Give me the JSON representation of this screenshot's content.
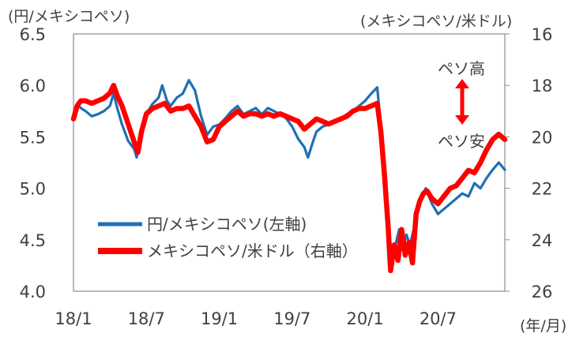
{
  "chart_data": {
    "type": "line",
    "title": "",
    "left_unit": "(円/メキシコペソ)",
    "right_unit": "(メキシコペソ/米ドル)",
    "period_unit": "(年/月)",
    "y_left": {
      "min": 4.0,
      "max": 6.5,
      "ticks": [
        "6.5",
        "6.0",
        "5.5",
        "5.0",
        "4.5",
        "4.0"
      ]
    },
    "y_right": {
      "min": 16,
      "max": 26,
      "inverted": true,
      "ticks": [
        "16",
        "18",
        "20",
        "22",
        "24",
        "26"
      ]
    },
    "x_ticks": [
      "18/1",
      "18/7",
      "19/1",
      "19/7",
      "20/1",
      "20/7"
    ],
    "x_tick_months": [
      0,
      6,
      12,
      18,
      24,
      30
    ],
    "x_range_months": [
      0,
      35.5
    ],
    "annotations": {
      "up": "ペソ高",
      "down": "ペソ安",
      "arrow_color": "#ff0000"
    },
    "series": [
      {
        "name": "円/メキシコペソ(左軸)",
        "axis": "left",
        "color": "#1f6fb4",
        "points": [
          [
            0,
            5.7
          ],
          [
            0.3,
            5.82
          ],
          [
            0.6,
            5.78
          ],
          [
            1,
            5.75
          ],
          [
            1.5,
            5.7
          ],
          [
            2,
            5.72
          ],
          [
            2.5,
            5.75
          ],
          [
            3,
            5.8
          ],
          [
            3.3,
            5.92
          ],
          [
            3.6,
            5.78
          ],
          [
            4,
            5.62
          ],
          [
            4.5,
            5.46
          ],
          [
            5,
            5.38
          ],
          [
            5.2,
            5.3
          ],
          [
            5.5,
            5.5
          ],
          [
            6,
            5.72
          ],
          [
            6.5,
            5.82
          ],
          [
            7,
            5.88
          ],
          [
            7.3,
            6.0
          ],
          [
            7.7,
            5.85
          ],
          [
            8,
            5.8
          ],
          [
            8.5,
            5.88
          ],
          [
            9,
            5.92
          ],
          [
            9.5,
            6.05
          ],
          [
            10,
            5.95
          ],
          [
            10.5,
            5.7
          ],
          [
            11,
            5.52
          ],
          [
            11.5,
            5.6
          ],
          [
            12,
            5.62
          ],
          [
            12.5,
            5.68
          ],
          [
            13,
            5.75
          ],
          [
            13.5,
            5.8
          ],
          [
            14,
            5.72
          ],
          [
            14.5,
            5.75
          ],
          [
            15,
            5.78
          ],
          [
            15.5,
            5.72
          ],
          [
            16,
            5.78
          ],
          [
            16.5,
            5.75
          ],
          [
            17,
            5.72
          ],
          [
            17.5,
            5.68
          ],
          [
            18,
            5.6
          ],
          [
            18.5,
            5.48
          ],
          [
            19,
            5.4
          ],
          [
            19.3,
            5.3
          ],
          [
            19.7,
            5.45
          ],
          [
            20,
            5.55
          ],
          [
            20.5,
            5.6
          ],
          [
            21,
            5.62
          ],
          [
            21.5,
            5.66
          ],
          [
            22,
            5.68
          ],
          [
            22.5,
            5.72
          ],
          [
            23,
            5.75
          ],
          [
            23.5,
            5.8
          ],
          [
            24,
            5.85
          ],
          [
            24.5,
            5.92
          ],
          [
            25,
            5.98
          ],
          [
            25.3,
            5.6
          ],
          [
            25.6,
            5.0
          ],
          [
            25.9,
            4.7
          ],
          [
            26.2,
            4.3
          ],
          [
            26.5,
            4.45
          ],
          [
            26.8,
            4.6
          ],
          [
            27.1,
            4.4
          ],
          [
            27.4,
            4.55
          ],
          [
            27.7,
            4.45
          ],
          [
            28,
            4.6
          ],
          [
            28.3,
            4.8
          ],
          [
            28.6,
            4.92
          ],
          [
            29,
            5.0
          ],
          [
            29.5,
            4.85
          ],
          [
            30,
            4.75
          ],
          [
            30.5,
            4.8
          ],
          [
            31,
            4.85
          ],
          [
            31.5,
            4.9
          ],
          [
            32,
            4.95
          ],
          [
            32.5,
            4.92
          ],
          [
            33,
            5.05
          ],
          [
            33.5,
            5.0
          ],
          [
            34,
            5.1
          ],
          [
            34.5,
            5.18
          ],
          [
            35,
            5.25
          ],
          [
            35.5,
            5.18
          ]
        ]
      },
      {
        "name": "メキシコペソ/米ドル（右軸）",
        "axis": "right",
        "color": "#ff0000",
        "points": [
          [
            0,
            19.3
          ],
          [
            0.3,
            18.8
          ],
          [
            0.6,
            18.6
          ],
          [
            1,
            18.6
          ],
          [
            1.5,
            18.7
          ],
          [
            2,
            18.6
          ],
          [
            2.5,
            18.5
          ],
          [
            3,
            18.3
          ],
          [
            3.3,
            18.0
          ],
          [
            3.6,
            18.4
          ],
          [
            4,
            18.8
          ],
          [
            4.5,
            19.5
          ],
          [
            5,
            20.2
          ],
          [
            5.3,
            20.6
          ],
          [
            5.6,
            19.8
          ],
          [
            6,
            19.1
          ],
          [
            6.5,
            18.9
          ],
          [
            7,
            18.8
          ],
          [
            7.5,
            18.7
          ],
          [
            8,
            19.0
          ],
          [
            8.5,
            18.9
          ],
          [
            9,
            18.9
          ],
          [
            9.5,
            18.8
          ],
          [
            10,
            19.2
          ],
          [
            10.5,
            19.6
          ],
          [
            11,
            20.2
          ],
          [
            11.5,
            20.1
          ],
          [
            12,
            19.6
          ],
          [
            12.5,
            19.4
          ],
          [
            13,
            19.2
          ],
          [
            13.5,
            19.0
          ],
          [
            14,
            19.2
          ],
          [
            14.5,
            19.1
          ],
          [
            15,
            19.1
          ],
          [
            15.5,
            19.2
          ],
          [
            16,
            19.1
          ],
          [
            16.5,
            19.2
          ],
          [
            17,
            19.1
          ],
          [
            17.5,
            19.2
          ],
          [
            18,
            19.3
          ],
          [
            18.5,
            19.4
          ],
          [
            19,
            19.7
          ],
          [
            19.5,
            19.5
          ],
          [
            20,
            19.3
          ],
          [
            20.5,
            19.4
          ],
          [
            21,
            19.5
          ],
          [
            21.5,
            19.4
          ],
          [
            22,
            19.3
          ],
          [
            22.5,
            19.2
          ],
          [
            23,
            19.0
          ],
          [
            23.5,
            18.9
          ],
          [
            24,
            18.9
          ],
          [
            24.5,
            18.8
          ],
          [
            25,
            18.7
          ],
          [
            25.3,
            19.8
          ],
          [
            25.6,
            21.5
          ],
          [
            25.9,
            23.5
          ],
          [
            26.1,
            25.2
          ],
          [
            26.4,
            24.2
          ],
          [
            26.7,
            24.8
          ],
          [
            27,
            23.6
          ],
          [
            27.3,
            24.6
          ],
          [
            27.6,
            24.1
          ],
          [
            27.9,
            24.9
          ],
          [
            28.2,
            23.0
          ],
          [
            28.5,
            22.5
          ],
          [
            28.8,
            22.2
          ],
          [
            29.1,
            22.1
          ],
          [
            29.5,
            22.4
          ],
          [
            30,
            22.6
          ],
          [
            30.5,
            22.3
          ],
          [
            31,
            22.0
          ],
          [
            31.5,
            21.9
          ],
          [
            32,
            21.6
          ],
          [
            32.5,
            21.3
          ],
          [
            33,
            21.4
          ],
          [
            33.5,
            21.0
          ],
          [
            34,
            20.5
          ],
          [
            34.5,
            20.1
          ],
          [
            35,
            19.9
          ],
          [
            35.5,
            20.1
          ]
        ]
      }
    ]
  }
}
